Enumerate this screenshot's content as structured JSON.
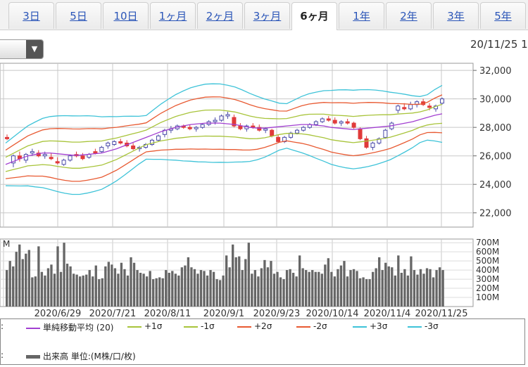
{
  "tabs": [
    {
      "label": "3日",
      "active": false
    },
    {
      "label": "5日",
      "active": false
    },
    {
      "label": "10日",
      "active": false
    },
    {
      "label": "1ヶ月",
      "active": false
    },
    {
      "label": "2ヶ月",
      "active": false
    },
    {
      "label": "3ヶ月",
      "active": false
    },
    {
      "label": "6ヶ月",
      "active": true
    },
    {
      "label": "1年",
      "active": false
    },
    {
      "label": "2年",
      "active": false
    },
    {
      "label": "3年",
      "active": false
    },
    {
      "label": "5年",
      "active": false
    }
  ],
  "dropdown_icon": "chevron-down-icon",
  "date_label": "20/11/25 1",
  "colors": {
    "up": "#ffffff",
    "down": "#e03a3a",
    "up_outline": "#4a4aa8",
    "ma": "#a23fd1",
    "s1": "#a8c43a",
    "s2": "#e85a32",
    "s3": "#3ec3d8",
    "volume": "#666666",
    "grid": "#c8c8c8"
  },
  "chart_data": [
    {
      "type": "candlestick",
      "title": "",
      "y_ticks": [
        "22,000",
        "24,000",
        "26,000",
        "28,000",
        "30,000",
        "32,000"
      ],
      "ylim": [
        21000,
        32500
      ],
      "x_labels": [
        "2020/6/29",
        "2020/7/21",
        "2020/8/11",
        "2020/9/1",
        "2020/9/23",
        "2020/10/14",
        "2020/11/4",
        "2020/11/25"
      ],
      "candles": [
        [
          27300,
          27500,
          27100,
          27200
        ],
        [
          25500,
          26100,
          25200,
          26000
        ],
        [
          26000,
          26300,
          25600,
          25800
        ],
        [
          25700,
          26200,
          25500,
          26100
        ],
        [
          26200,
          26500,
          26000,
          26300
        ],
        [
          26200,
          26400,
          25900,
          26000
        ],
        [
          26000,
          26300,
          25800,
          26100
        ],
        [
          25900,
          26200,
          25700,
          25800
        ],
        [
          25600,
          25900,
          25400,
          25500
        ],
        [
          25400,
          25800,
          25300,
          25700
        ],
        [
          25700,
          26100,
          25600,
          26000
        ],
        [
          26100,
          26300,
          25900,
          26000
        ],
        [
          26000,
          26200,
          25700,
          25800
        ],
        [
          25900,
          26200,
          25800,
          26100
        ],
        [
          26300,
          26500,
          26100,
          26200
        ],
        [
          26300,
          26700,
          26200,
          26600
        ],
        [
          26700,
          27000,
          26500,
          26900
        ],
        [
          26800,
          27100,
          26700,
          27000
        ],
        [
          27000,
          27200,
          26800,
          26900
        ],
        [
          26900,
          27100,
          26600,
          26700
        ],
        [
          26700,
          26900,
          26400,
          26500
        ],
        [
          26500,
          26700,
          26300,
          26600
        ],
        [
          26600,
          26900,
          26500,
          26800
        ],
        [
          26800,
          27200,
          26700,
          27100
        ],
        [
          27100,
          27500,
          27000,
          27400
        ],
        [
          27500,
          27900,
          27300,
          27800
        ],
        [
          27800,
          28100,
          27600,
          27900
        ],
        [
          27900,
          28200,
          27800,
          28100
        ],
        [
          28100,
          28200,
          27900,
          28000
        ],
        [
          28000,
          28200,
          27800,
          27900
        ],
        [
          27900,
          28100,
          27700,
          28000
        ],
        [
          28000,
          28300,
          27900,
          28200
        ],
        [
          28200,
          28500,
          28100,
          28400
        ],
        [
          28400,
          28700,
          28200,
          28500
        ],
        [
          28500,
          28900,
          28400,
          28800
        ],
        [
          28800,
          29100,
          28600,
          28900
        ],
        [
          28700,
          28900,
          28000,
          28100
        ],
        [
          28100,
          28300,
          27800,
          27900
        ],
        [
          27900,
          28200,
          27700,
          28100
        ],
        [
          28100,
          28300,
          27900,
          28000
        ],
        [
          28000,
          28200,
          27700,
          27800
        ],
        [
          27800,
          28000,
          27600,
          27900
        ],
        [
          27800,
          27900,
          27300,
          27400
        ],
        [
          27300,
          27500,
          26900,
          27000
        ],
        [
          27000,
          27400,
          26900,
          27300
        ],
        [
          27300,
          27700,
          27200,
          27600
        ],
        [
          27600,
          27900,
          27500,
          27800
        ],
        [
          27800,
          28100,
          27700,
          28000
        ],
        [
          28000,
          28300,
          27900,
          28200
        ],
        [
          28200,
          28500,
          28100,
          28400
        ],
        [
          28400,
          28700,
          28300,
          28600
        ],
        [
          28600,
          28800,
          28400,
          28500
        ],
        [
          28500,
          28700,
          28200,
          28300
        ],
        [
          28300,
          28500,
          28100,
          28400
        ],
        [
          28400,
          28600,
          28200,
          28300
        ],
        [
          28300,
          28400,
          27900,
          28000
        ],
        [
          27900,
          28000,
          27100,
          27200
        ],
        [
          27200,
          27400,
          26500,
          26600
        ],
        [
          26600,
          27000,
          26400,
          26900
        ],
        [
          26900,
          27300,
          26800,
          27200
        ],
        [
          27300,
          27900,
          27200,
          27800
        ],
        [
          27900,
          28400,
          27800,
          28300
        ],
        [
          29200,
          29600,
          29000,
          29500
        ],
        [
          29400,
          29700,
          29200,
          29300
        ],
        [
          29300,
          29800,
          29200,
          29600
        ],
        [
          29600,
          29900,
          29400,
          29800
        ],
        [
          29800,
          30000,
          29500,
          29600
        ],
        [
          29500,
          29700,
          29200,
          29400
        ],
        [
          29300,
          29600,
          29100,
          29500
        ],
        [
          29700,
          30100,
          29600,
          30000
        ]
      ],
      "ma20": [
        25400,
        25600,
        25800,
        26000,
        26100,
        26200,
        26200,
        26150,
        26100,
        26050,
        26050,
        26100,
        26150,
        26200,
        26350,
        26500,
        26700,
        26900,
        27100,
        27300,
        27500,
        27700,
        27850,
        28000,
        28100,
        28200,
        28250,
        28300,
        28300,
        28300,
        28250,
        28200,
        28100,
        28000,
        27950,
        27950,
        28000,
        28050,
        28100,
        28150,
        28200,
        28200,
        28150,
        28100,
        28000,
        27950,
        27900,
        27850,
        27900,
        27950,
        28000,
        28050,
        28100,
        28200,
        28300,
        28400,
        28550,
        28700,
        28850,
        28950
      ],
      "volume_ticks": [
        "100M",
        "200M",
        "300M",
        "400M",
        "500M",
        "600M",
        "700M"
      ],
      "volume_label": "M",
      "volumes": [
        400,
        500,
        440,
        600,
        680,
        520,
        580,
        620,
        320,
        330,
        660,
        380,
        340,
        420,
        460,
        360,
        660,
        380,
        700,
        470,
        440,
        360,
        350,
        330,
        340,
        350,
        400,
        330,
        450,
        300,
        310,
        440,
        490,
        460,
        420,
        360,
        480,
        410,
        340,
        540,
        480,
        400,
        370,
        360,
        330,
        390,
        300,
        310,
        320,
        310,
        400,
        370,
        390,
        360,
        340,
        430,
        450,
        540,
        430,
        410,
        360,
        400,
        390,
        340,
        400,
        380,
        300,
        290,
        340,
        560,
        430,
        680,
        540,
        550,
        400,
        520,
        700,
        360,
        400,
        330,
        420,
        510,
        430,
        500,
        360,
        380,
        320,
        300,
        400,
        410,
        370,
        330,
        560,
        420,
        400,
        380,
        400,
        380,
        380,
        360,
        460,
        530,
        380,
        330,
        410,
        450,
        500,
        330,
        400,
        410,
        390,
        310,
        320,
        300,
        300,
        380,
        420,
        540,
        400,
        480,
        440,
        430,
        340,
        560,
        370,
        410,
        340,
        550,
        400,
        350,
        410,
        360,
        420,
        410,
        320,
        400,
        430,
        400
      ]
    }
  ],
  "legend": {
    "ma": "単純移動平均 (20)",
    "p1": "+1σ",
    "m1": "-1σ",
    "p2": "+2σ",
    "m2": "-2σ",
    "p3": "+3σ",
    "m3": "-3σ",
    "volume": "出来高 単位:(M株/口/枚)"
  }
}
